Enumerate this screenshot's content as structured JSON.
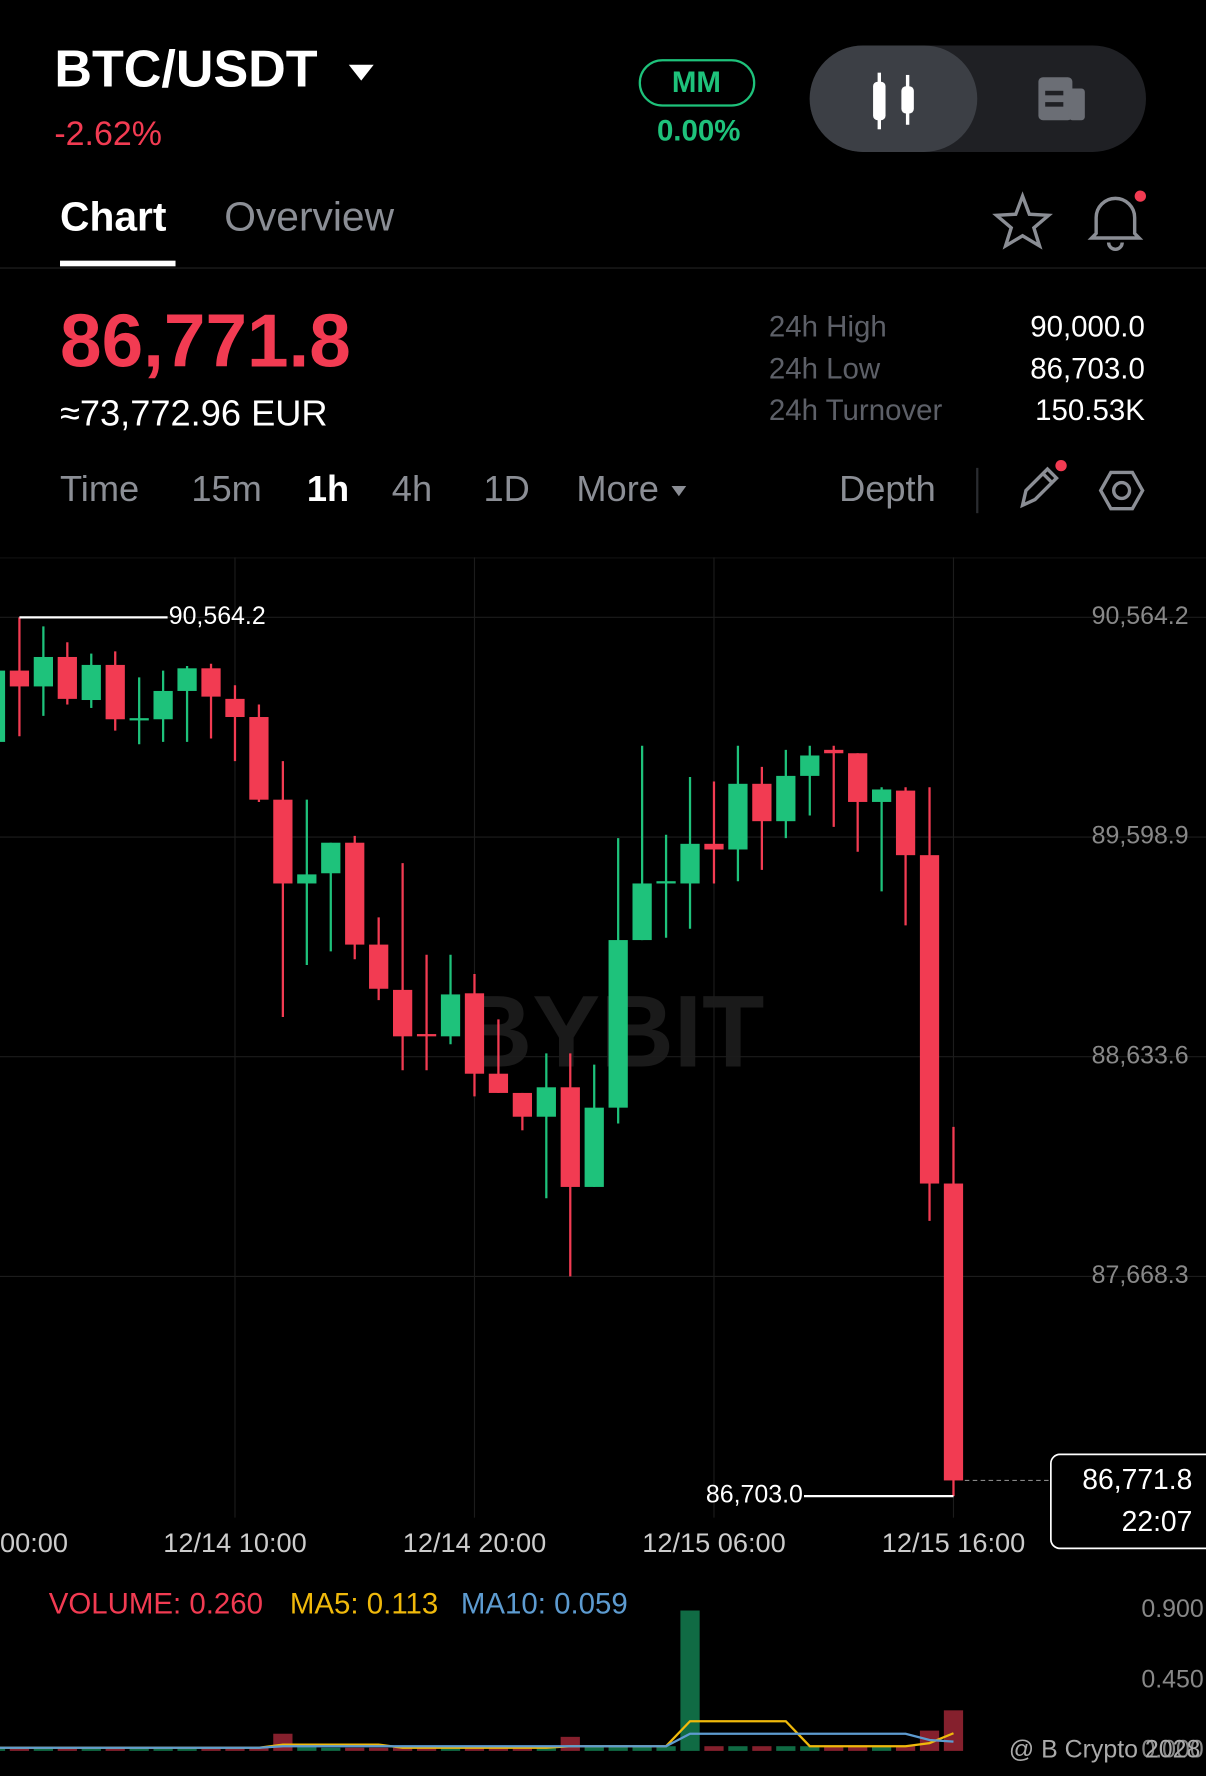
{
  "header": {
    "symbol": "BTC/USDT",
    "change": "-2.62%",
    "badge": "MM",
    "badge_change": "0.00%"
  },
  "tabs": [
    "Chart",
    "Overview"
  ],
  "price": {
    "last": "86,771.8",
    "fiat": "≈73,772.96 EUR"
  },
  "stats": [
    {
      "label": "24h High",
      "value": "90,000.0"
    },
    {
      "label": "24h Low",
      "value": "86,703.0"
    },
    {
      "label": "24h Turnover",
      "value": "150.53K"
    }
  ],
  "toolbar": {
    "intervals": [
      "Time",
      "15m",
      "1h",
      "4h",
      "1D",
      "More"
    ],
    "depth": "Depth"
  },
  "chart_data": [
    {
      "type": "candlestick",
      "categories": [
        "00:00",
        null,
        null,
        null,
        null,
        null,
        null,
        null,
        null,
        null,
        "12/14 10:00",
        null,
        null,
        null,
        null,
        null,
        null,
        null,
        null,
        null,
        "12/14 20:00",
        null,
        null,
        null,
        null,
        null,
        null,
        null,
        null,
        null,
        "12/15 06:00",
        null,
        null,
        null,
        null,
        null,
        null,
        null,
        null,
        null,
        "12/15 16:00"
      ],
      "open": [
        90016.9,
        90330.3,
        90260.7,
        90390.1,
        90201.0,
        90355.2,
        90111.4,
        90116.4,
        90240.8,
        90340.3,
        90206.0,
        90126.3,
        89763.1,
        89394.9,
        89439.7,
        89574.0,
        89126.3,
        88927.3,
        88733.2,
        88723.2,
        88912.3,
        88559.0,
        88474.5,
        88370.0,
        88499.3,
        88061.5,
        88409.8,
        89146.2,
        89394.9,
        89394.9,
        89569.1,
        89544.2,
        89832.8,
        89668.6,
        89867.6,
        89982.0,
        89967.1,
        89753.1,
        89802.9,
        89519.3,
        88076.4
      ],
      "high": [
        90390.1,
        90564.2,
        90524.4,
        90454.7,
        90405.0,
        90414.9,
        90300.5,
        90330.3,
        90350.2,
        90360.2,
        90265.7,
        90181.1,
        89932.3,
        89763.1,
        89574.0,
        89603.9,
        89245.7,
        89484.5,
        89081.6,
        89081.6,
        88997.0,
        88797.9,
        88474.5,
        88648.6,
        88648.6,
        88598.8,
        89593.9,
        90000.0,
        89608.9,
        89862.6,
        89842.7,
        90000.0,
        89907.4,
        89982.0,
        90000.0,
        90000.0,
        89967.1,
        89817.8,
        89817.8,
        89817.8,
        88325.3
      ],
      "low": [
        90016.9,
        90041.7,
        90131.3,
        90181.1,
        90166.1,
        90066.6,
        90006.9,
        90016.9,
        90016.9,
        90031.8,
        89932.3,
        89753.1,
        88807.9,
        89036.8,
        89096.5,
        89061.7,
        88882.5,
        88574.0,
        88574.0,
        88688.4,
        88459.5,
        88474.5,
        88310.3,
        88011.7,
        87668.4,
        88061.5,
        88340.1,
        89146.2,
        89156.2,
        89196.0,
        89394.9,
        89404.9,
        89454.7,
        89593.9,
        89693.4,
        89643.7,
        89534.3,
        89360.1,
        89210.9,
        87912.2,
        86703.0
      ],
      "close": [
        90330.3,
        90260.7,
        90390.1,
        90206.0,
        90355.2,
        90116.4,
        90121.3,
        90240.8,
        90340.3,
        90215.9,
        90126.3,
        89763.1,
        89394.9,
        89434.8,
        89574.0,
        89126.3,
        88932.3,
        88723.2,
        88723.2,
        88907.4,
        88559.0,
        88474.5,
        88370.0,
        88499.3,
        88061.5,
        88409.8,
        89146.2,
        89394.9,
        89404.9,
        89569.1,
        89544.2,
        89832.8,
        89668.6,
        89867.6,
        89957.2,
        89967.1,
        89753.1,
        89807.9,
        89519.3,
        88076.4,
        86771.8
      ],
      "up_color": "#1ec27b",
      "down_color": "#f23b52",
      "ylim": [
        86608.5,
        90827.9
      ],
      "yticks": [
        {
          "value": 90564.2,
          "label": "90,564.2"
        },
        {
          "value": 89598.9,
          "label": "89,598.9"
        },
        {
          "value": 88633.6,
          "label": "88,633.6"
        },
        {
          "value": 87668.3,
          "label": "87,668.3"
        }
      ],
      "grid": true,
      "high_marker": {
        "value": 90564.2,
        "label": "90,564.2"
      },
      "low_marker": {
        "value": 86703.0,
        "label": "86,703.0"
      },
      "last_marker": {
        "value": 86771.8,
        "label": "86,771.8"
      },
      "countdown": "22:07",
      "watermark": "BYBIT"
    },
    {
      "type": "volume",
      "series": [
        {
          "name": "VOLUME: 0.260",
          "color": "#f23b52",
          "values": [
            0.02,
            0.02,
            0.02,
            0.02,
            0.02,
            0.02,
            0.02,
            0.02,
            0.02,
            0.02,
            0.02,
            0.02,
            0.11,
            0.04,
            0.02,
            0.02,
            0.02,
            0.02,
            0.02,
            0.02,
            0.02,
            0.02,
            0.02,
            0.02,
            0.09,
            0.03,
            0.03,
            0.03,
            0.03,
            0.9,
            0.03,
            0.03,
            0.03,
            0.03,
            0.03,
            0.03,
            0.03,
            0.03,
            0.03,
            0.13,
            0.26
          ]
        },
        {
          "name": "MA5: 0.113",
          "color": "#f0b90b",
          "values": [
            0.02,
            0.02,
            0.02,
            0.02,
            0.02,
            0.02,
            0.02,
            0.02,
            0.02,
            0.02,
            0.02,
            0.02,
            0.04,
            0.04,
            0.04,
            0.04,
            0.04,
            0.02,
            0.02,
            0.02,
            0.02,
            0.02,
            0.02,
            0.02,
            0.03,
            0.03,
            0.03,
            0.03,
            0.03,
            0.19,
            0.19,
            0.19,
            0.19,
            0.19,
            0.03,
            0.03,
            0.03,
            0.03,
            0.03,
            0.05,
            0.113
          ]
        },
        {
          "name": "MA10: 0.059",
          "color": "#5d9bd0",
          "values": [
            0.02,
            0.02,
            0.02,
            0.02,
            0.02,
            0.02,
            0.02,
            0.02,
            0.02,
            0.02,
            0.02,
            0.02,
            0.03,
            0.03,
            0.03,
            0.03,
            0.03,
            0.03,
            0.03,
            0.03,
            0.03,
            0.03,
            0.03,
            0.03,
            0.03,
            0.03,
            0.03,
            0.03,
            0.03,
            0.11,
            0.11,
            0.11,
            0.11,
            0.11,
            0.11,
            0.11,
            0.11,
            0.11,
            0.11,
            0.07,
            0.059
          ]
        }
      ],
      "ylim": [
        0,
        1.06
      ],
      "yticks": [
        {
          "value": 0.9,
          "label": "0.900"
        },
        {
          "value": 0.45,
          "label": "0.450"
        },
        {
          "value": 0,
          "label": "0.000"
        }
      ]
    }
  ],
  "footer": "@ B Crypto 2028"
}
